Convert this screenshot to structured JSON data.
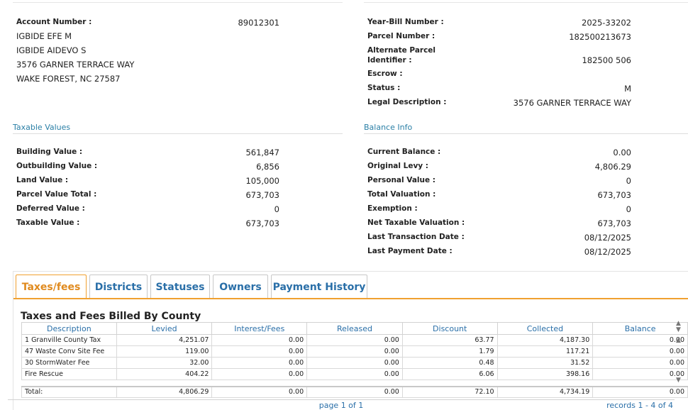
{
  "account": {
    "account_number_label": "Account Number :",
    "account_number": "89012301",
    "owner_line1": "IGBIDE EFE M",
    "owner_line2": "IGBIDE AIDEVO S",
    "address_line1": "3576 GARNER TERRACE WAY",
    "address_line2": "WAKE FOREST, NC 27587"
  },
  "bill": {
    "year_bill_label": "Year-Bill Number :",
    "year_bill": "2025-33202",
    "parcel_label": "Parcel Number :",
    "parcel": "182500213673",
    "alt_parcel_label_1": "Alternate Parcel",
    "alt_parcel_label_2": "Identifier :",
    "alt_parcel": "182500 506",
    "escrow_label": "Escrow :",
    "escrow": "",
    "status_label": "Status :",
    "status": "M",
    "legal_label": "Legal Description :",
    "legal": "3576 GARNER TERRACE WAY"
  },
  "taxable_values": {
    "title": "Taxable Values",
    "rows": [
      {
        "label": "Building Value :",
        "value": "561,847"
      },
      {
        "label": "Outbuilding Value :",
        "value": "6,856"
      },
      {
        "label": "Land Value :",
        "value": "105,000"
      },
      {
        "label": "Parcel Value Total :",
        "value": "673,703"
      },
      {
        "label": "Deferred Value :",
        "value": "0"
      },
      {
        "label": "Taxable Value :",
        "value": "673,703"
      }
    ]
  },
  "balance_info": {
    "title": "Balance Info",
    "rows": [
      {
        "label": "Current Balance :",
        "value": "0.00"
      },
      {
        "label": "Original Levy :",
        "value": "4,806.29"
      },
      {
        "label": "Personal Value :",
        "value": "0"
      },
      {
        "label": "Total Valuation :",
        "value": "673,703"
      },
      {
        "label": "Exemption :",
        "value": "0"
      },
      {
        "label": "Net Taxable Valuation :",
        "value": "673,703"
      },
      {
        "label": "Last Transaction Date :",
        "value": "08/12/2025"
      },
      {
        "label": "Last Payment Date :",
        "value": "08/12/2025"
      }
    ]
  },
  "tabs": [
    "Taxes/fees",
    "Districts",
    "Statuses",
    "Owners",
    "Payment History"
  ],
  "taxes_table": {
    "title": "Taxes and Fees Billed By County",
    "columns": [
      "Description",
      "Levied",
      "Interest/Fees",
      "Released",
      "Discount",
      "Collected",
      "Balance"
    ],
    "rows": [
      [
        "1 Granville County Tax",
        "4,251.07",
        "0.00",
        "0.00",
        "63.77",
        "4,187.30",
        "0.00"
      ],
      [
        "47 Waste Conv Site Fee",
        "119.00",
        "0.00",
        "0.00",
        "1.79",
        "117.21",
        "0.00"
      ],
      [
        "30 StormWater Fee",
        "32.00",
        "0.00",
        "0.00",
        "0.48",
        "31.52",
        "0.00"
      ],
      [
        "Fire Rescue",
        "404.22",
        "0.00",
        "0.00",
        "6.06",
        "398.16",
        "0.00"
      ]
    ],
    "total": [
      "Total:",
      "4,806.29",
      "0.00",
      "0.00",
      "72.10",
      "4,734.19",
      "0.00"
    ],
    "page_text": "page 1 of 1",
    "records_text": "records 1 - 4 of 4"
  },
  "icons": {
    "scroll_up": "scroll-up-icon",
    "scroll_down": "scroll-down-icon"
  }
}
